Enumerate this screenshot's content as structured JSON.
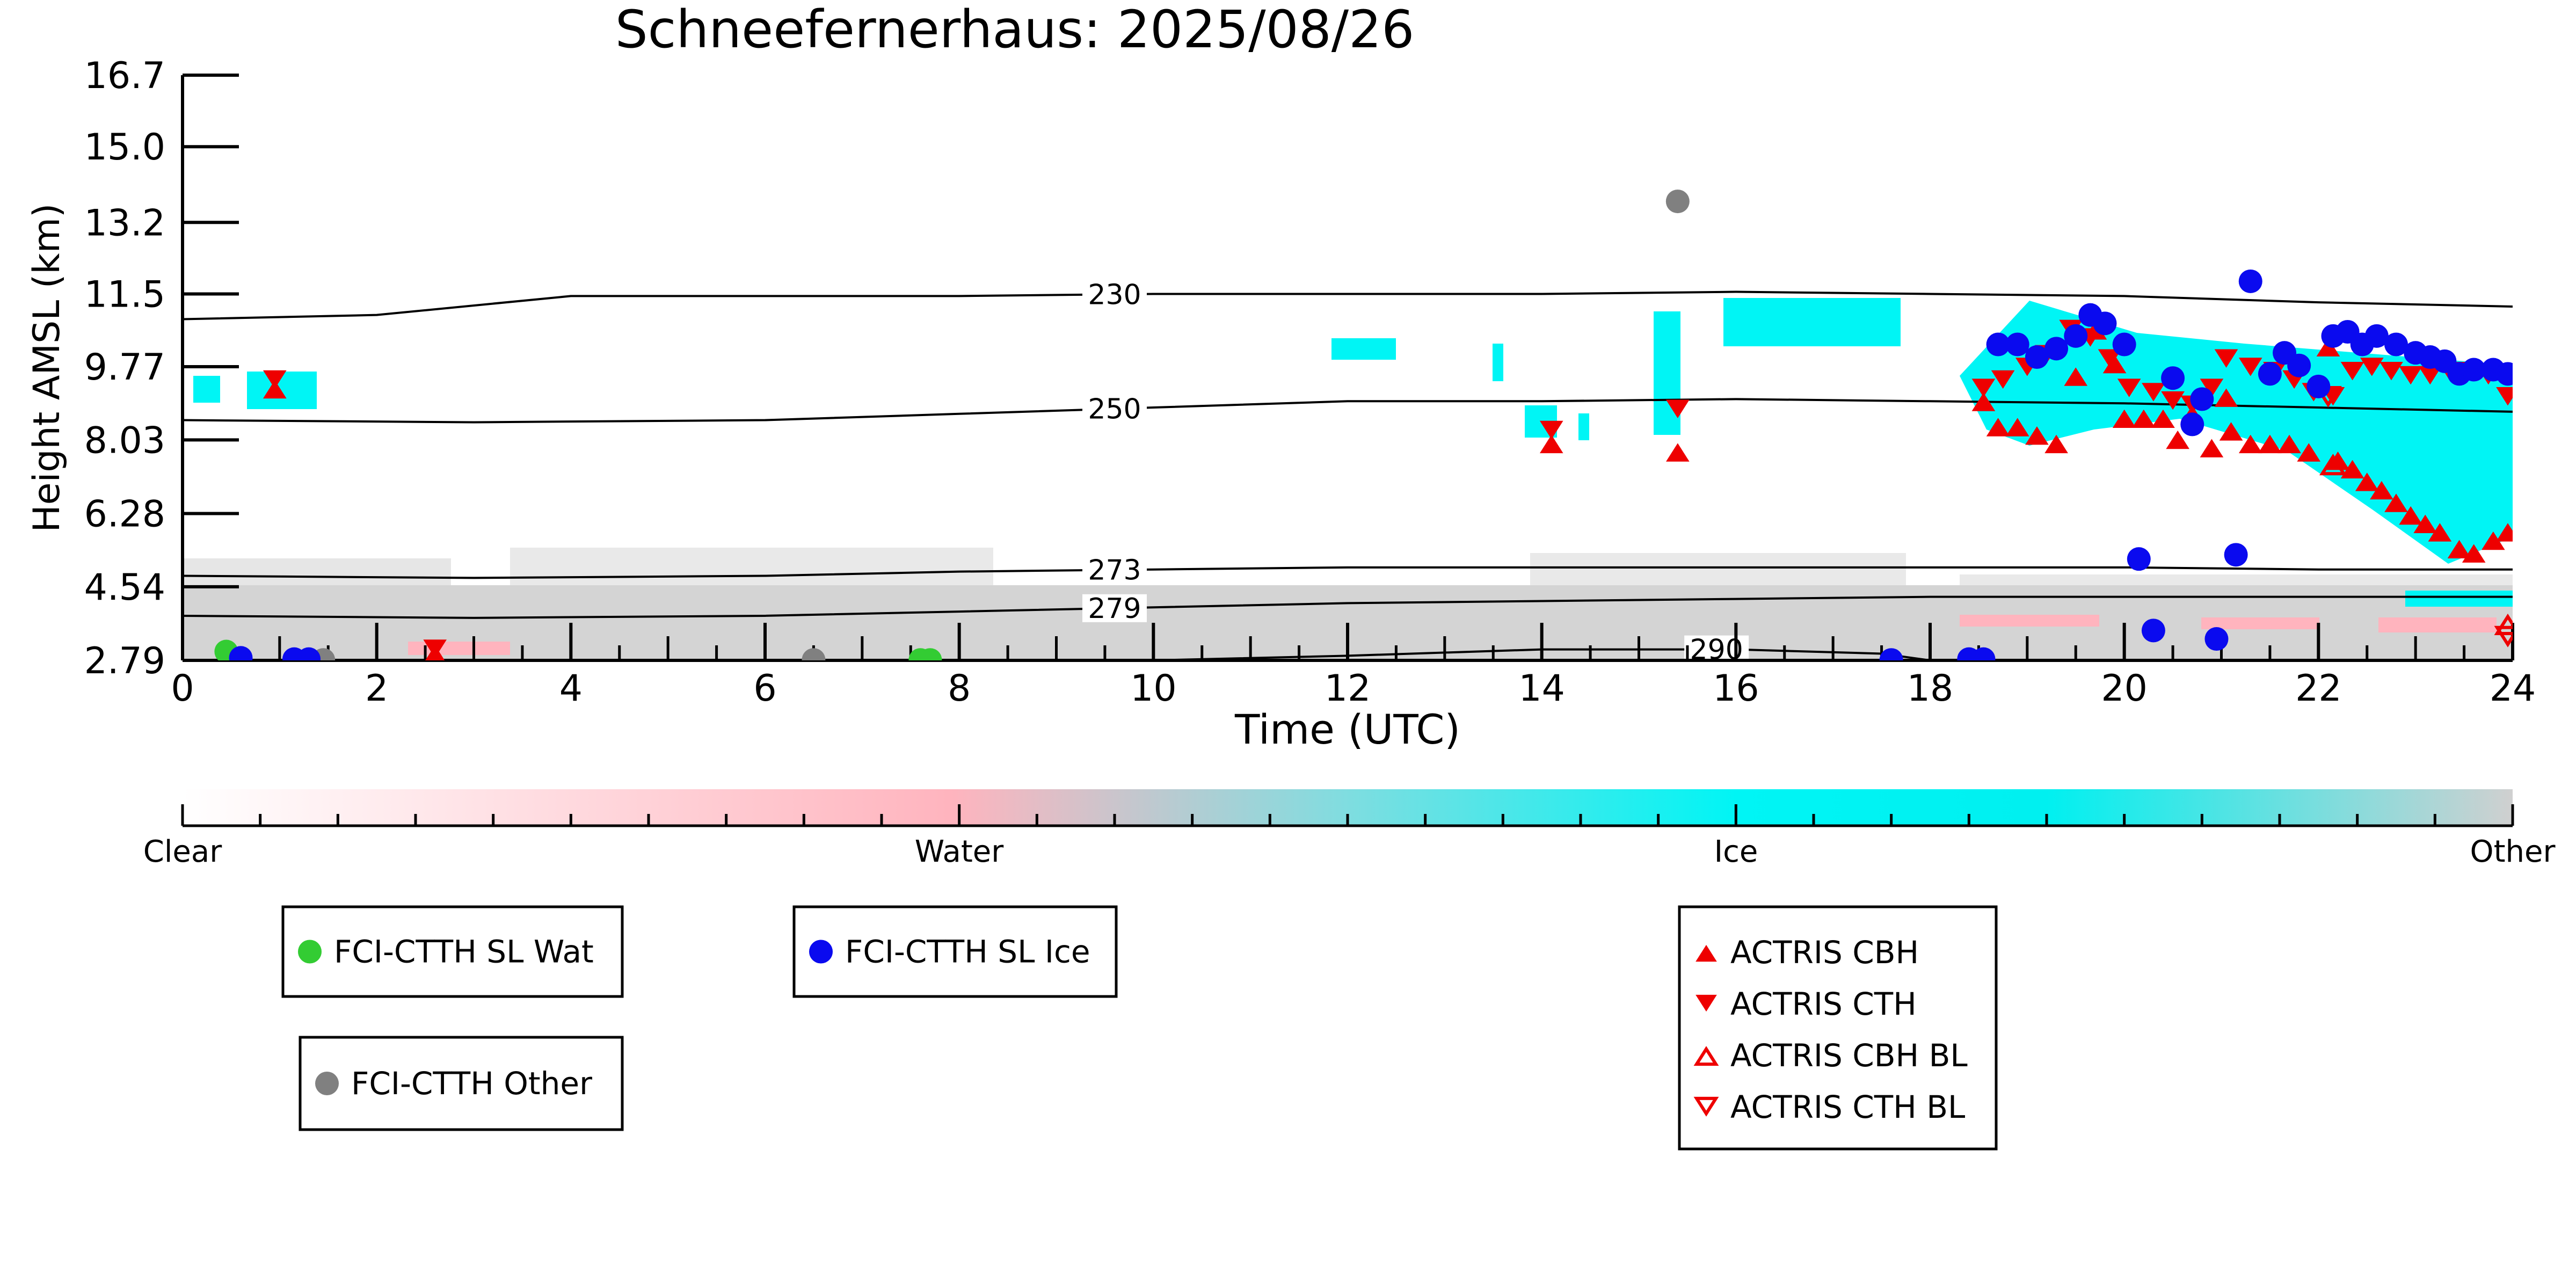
{
  "colors": {
    "ice": "#00f5f5",
    "water_pink": "#ffb4be",
    "other_gray": "#d0d0d0",
    "sl_wat": "#33cc33",
    "sl_ice": "#0a0aef",
    "other_marker": "#808080",
    "actris": "#ee0000"
  },
  "chart_data": {
    "type": "scatter",
    "title": "Schneefernerhaus: 2025/08/26",
    "xlabel": "Time (UTC)",
    "ylabel": "Height AMSL (km)",
    "xlim": [
      0,
      24
    ],
    "ylim": [
      2.79,
      16.7
    ],
    "x_ticks": [
      "0",
      "2",
      "4",
      "6",
      "8",
      "10",
      "12",
      "14",
      "16",
      "18",
      "20",
      "22",
      "24"
    ],
    "y_ticks": [
      "2.79",
      "4.54",
      "6.28",
      "8.03",
      "9.77",
      "11.5",
      "13.2",
      "15.0",
      "16.7"
    ],
    "grid": false,
    "isotherms": [
      {
        "label": "230",
        "label_x": 9.6,
        "points": [
          [
            0,
            10.9
          ],
          [
            2,
            11.0
          ],
          [
            4,
            11.45
          ],
          [
            6,
            11.45
          ],
          [
            8,
            11.45
          ],
          [
            10,
            11.5
          ],
          [
            12,
            11.5
          ],
          [
            14,
            11.5
          ],
          [
            16,
            11.55
          ],
          [
            18,
            11.5
          ],
          [
            20,
            11.45
          ],
          [
            22,
            11.3
          ],
          [
            24,
            11.2
          ]
        ]
      },
      {
        "label": "250",
        "label_x": 9.6,
        "points": [
          [
            0,
            8.5
          ],
          [
            3,
            8.45
          ],
          [
            6,
            8.5
          ],
          [
            8,
            8.65
          ],
          [
            10,
            8.8
          ],
          [
            12,
            8.95
          ],
          [
            14,
            8.95
          ],
          [
            16,
            9.0
          ],
          [
            18,
            8.95
          ],
          [
            20,
            8.9
          ],
          [
            22,
            8.8
          ],
          [
            24,
            8.7
          ]
        ]
      },
      {
        "label": "273",
        "label_x": 9.6,
        "points": [
          [
            0,
            4.8
          ],
          [
            3,
            4.75
          ],
          [
            6,
            4.8
          ],
          [
            8,
            4.9
          ],
          [
            10,
            4.95
          ],
          [
            12,
            5.0
          ],
          [
            14,
            5.0
          ],
          [
            16,
            5.0
          ],
          [
            18,
            5.0
          ],
          [
            20,
            5.0
          ],
          [
            22,
            4.95
          ],
          [
            24,
            4.95
          ]
        ]
      },
      {
        "label": "279",
        "label_x": 9.6,
        "points": [
          [
            0,
            3.85
          ],
          [
            3,
            3.8
          ],
          [
            6,
            3.85
          ],
          [
            8,
            3.95
          ],
          [
            10,
            4.05
          ],
          [
            12,
            4.15
          ],
          [
            14,
            4.2
          ],
          [
            16,
            4.25
          ],
          [
            18,
            4.3
          ],
          [
            20,
            4.3
          ],
          [
            22,
            4.3
          ],
          [
            24,
            4.3
          ]
        ]
      },
      {
        "label": "290",
        "label_x": 15.8,
        "points": [
          [
            10,
            2.79
          ],
          [
            12,
            2.9
          ],
          [
            14,
            3.05
          ],
          [
            16,
            3.05
          ],
          [
            17.5,
            2.95
          ],
          [
            18,
            2.79
          ]
        ]
      }
    ],
    "fci_sl_wat": [
      [
        0.45,
        3.0
      ],
      [
        0.5,
        2.85
      ],
      [
        7.6,
        2.8
      ],
      [
        7.7,
        2.8
      ]
    ],
    "fci_sl_ice": [
      [
        0.6,
        2.85
      ],
      [
        1.15,
        2.82
      ],
      [
        1.3,
        2.82
      ],
      [
        17.6,
        2.8
      ],
      [
        18.4,
        2.82
      ],
      [
        18.55,
        2.82
      ],
      [
        18.7,
        10.3
      ],
      [
        18.9,
        10.3
      ],
      [
        19.1,
        10.0
      ],
      [
        19.3,
        10.2
      ],
      [
        19.5,
        10.5
      ],
      [
        19.65,
        11.0
      ],
      [
        19.8,
        10.8
      ],
      [
        20.0,
        10.3
      ],
      [
        20.15,
        5.2
      ],
      [
        20.3,
        3.5
      ],
      [
        20.5,
        9.5
      ],
      [
        20.7,
        8.4
      ],
      [
        20.8,
        9.0
      ],
      [
        20.95,
        3.3
      ],
      [
        21.15,
        5.3
      ],
      [
        21.3,
        11.8
      ],
      [
        21.5,
        9.6
      ],
      [
        21.65,
        10.1
      ],
      [
        21.8,
        9.8
      ],
      [
        22.0,
        9.3
      ],
      [
        22.15,
        10.5
      ],
      [
        22.3,
        10.6
      ],
      [
        22.45,
        10.3
      ],
      [
        22.6,
        10.5
      ],
      [
        22.8,
        10.3
      ],
      [
        23.0,
        10.1
      ],
      [
        23.15,
        10.0
      ],
      [
        23.3,
        9.9
      ],
      [
        23.45,
        9.6
      ],
      [
        23.6,
        9.7
      ],
      [
        23.8,
        9.7
      ],
      [
        23.95,
        9.6
      ]
    ],
    "fci_other": [
      [
        15.4,
        13.7
      ],
      [
        1.45,
        2.8
      ],
      [
        6.5,
        2.8
      ]
    ],
    "actris_cbh": [
      [
        0.95,
        9.2
      ],
      [
        2.6,
        2.9
      ],
      [
        14.1,
        7.9
      ],
      [
        15.4,
        7.7
      ],
      [
        18.55,
        8.9
      ],
      [
        18.7,
        8.3
      ],
      [
        18.9,
        8.3
      ],
      [
        19.1,
        8.1
      ],
      [
        19.3,
        7.9
      ],
      [
        19.5,
        9.5
      ],
      [
        19.7,
        10.6
      ],
      [
        19.9,
        9.8
      ],
      [
        20.0,
        8.5
      ],
      [
        20.2,
        8.5
      ],
      [
        20.4,
        8.5
      ],
      [
        20.55,
        8.0
      ],
      [
        20.7,
        8.6
      ],
      [
        20.9,
        7.8
      ],
      [
        21.05,
        9.0
      ],
      [
        21.1,
        8.2
      ],
      [
        21.3,
        7.9
      ],
      [
        21.5,
        7.9
      ],
      [
        21.7,
        7.9
      ],
      [
        21.9,
        7.7
      ],
      [
        22.1,
        10.2
      ],
      [
        22.2,
        7.5
      ],
      [
        22.35,
        7.3
      ],
      [
        22.5,
        7.0
      ],
      [
        22.65,
        6.8
      ],
      [
        22.8,
        6.5
      ],
      [
        22.95,
        6.2
      ],
      [
        23.1,
        6.0
      ],
      [
        23.25,
        5.8
      ],
      [
        23.45,
        5.4
      ],
      [
        23.6,
        5.3
      ],
      [
        23.8,
        5.6
      ],
      [
        23.95,
        5.8
      ]
    ],
    "actris_cth": [
      [
        0.95,
        9.5
      ],
      [
        2.6,
        3.1
      ],
      [
        14.1,
        8.3
      ],
      [
        15.4,
        8.8
      ],
      [
        18.55,
        9.3
      ],
      [
        18.75,
        9.5
      ],
      [
        19.0,
        9.8
      ],
      [
        19.2,
        10.1
      ],
      [
        19.45,
        10.7
      ],
      [
        19.65,
        10.5
      ],
      [
        19.85,
        10.0
      ],
      [
        20.05,
        9.3
      ],
      [
        20.3,
        9.2
      ],
      [
        20.5,
        9.0
      ],
      [
        20.7,
        8.9
      ],
      [
        20.9,
        9.3
      ],
      [
        21.05,
        10.0
      ],
      [
        21.3,
        9.8
      ],
      [
        21.55,
        9.7
      ],
      [
        21.75,
        9.5
      ],
      [
        21.95,
        9.2
      ],
      [
        22.15,
        9.1
      ],
      [
        22.35,
        9.7
      ],
      [
        22.55,
        9.8
      ],
      [
        22.75,
        9.7
      ],
      [
        22.95,
        9.6
      ],
      [
        23.15,
        9.6
      ],
      [
        23.35,
        9.7
      ],
      [
        23.55,
        9.7
      ],
      [
        23.75,
        9.6
      ],
      [
        23.95,
        9.1
      ]
    ],
    "actris_cbh_bl": [
      [
        22.15,
        7.4
      ],
      [
        23.95,
        3.6
      ]
    ],
    "actris_cth_bl": [
      [
        23.95,
        3.4
      ],
      [
        22.1,
        9.1
      ]
    ],
    "colorbar": {
      "labels": [
        "Clear",
        "Water",
        "Ice",
        "Other"
      ],
      "positions": [
        0,
        0.3333,
        0.6667,
        1
      ]
    },
    "legends": [
      {
        "entries": [
          {
            "label": "FCI-CTTH SL Wat",
            "marker": "circle",
            "color": "#33cc33",
            "filled": true
          }
        ]
      },
      {
        "entries": [
          {
            "label": "FCI-CTTH SL Ice",
            "marker": "circle",
            "color": "#0a0aef",
            "filled": true
          }
        ]
      },
      {
        "entries": [
          {
            "label": "FCI-CTTH Other",
            "marker": "circle",
            "color": "#808080",
            "filled": true
          }
        ]
      },
      {
        "entries": [
          {
            "label": "ACTRIS CBH",
            "marker": "triangle-up",
            "color": "#ee0000",
            "filled": true
          },
          {
            "label": "ACTRIS CTH",
            "marker": "triangle-down",
            "color": "#ee0000",
            "filled": true
          },
          {
            "label": "ACTRIS CBH BL",
            "marker": "triangle-up",
            "color": "#ee0000",
            "filled": false
          },
          {
            "label": "ACTRIS CTH BL",
            "marker": "triangle-down",
            "color": "#ee0000",
            "filled": false
          }
        ]
      }
    ]
  }
}
